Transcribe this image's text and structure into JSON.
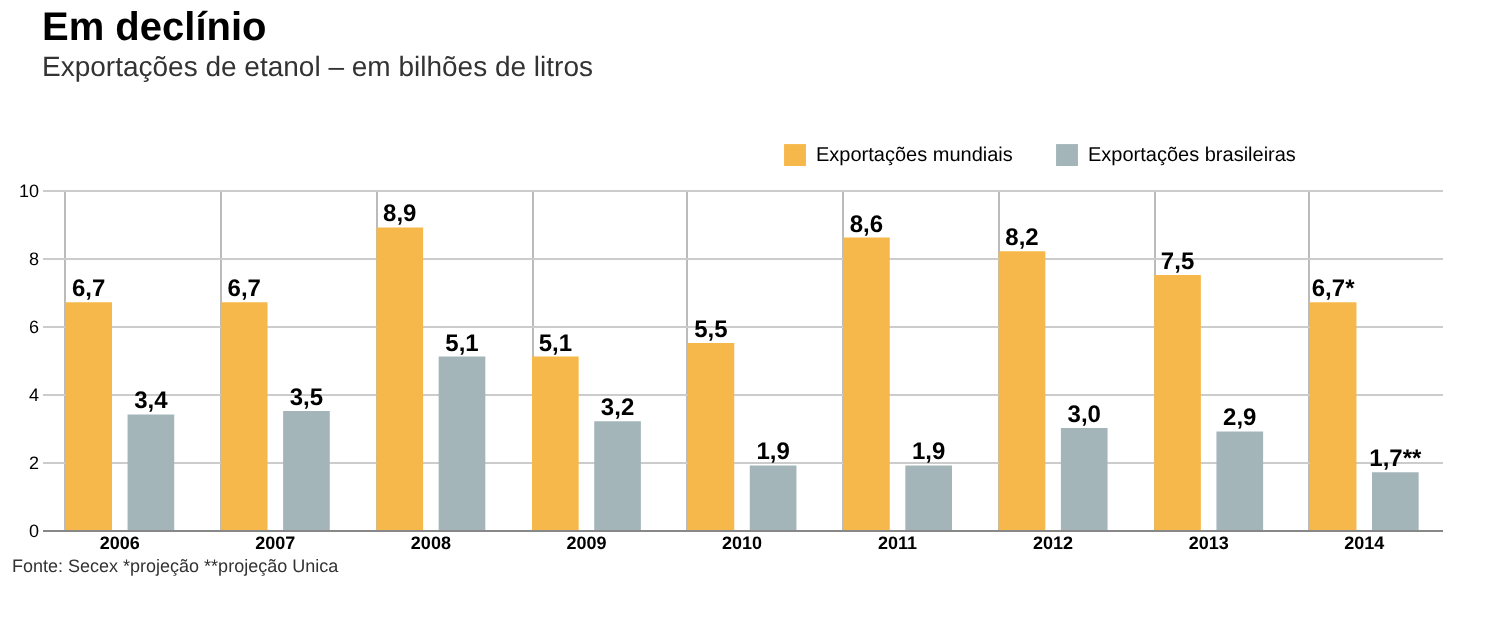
{
  "chart_data": {
    "type": "bar",
    "title": "Em declínio",
    "subtitle": "Exportações de etanol – em bilhões de litros",
    "categories": [
      "2006",
      "2007",
      "2008",
      "2009",
      "2010",
      "2011",
      "2012",
      "2013",
      "2014"
    ],
    "series": [
      {
        "name": "Exportações mundiais",
        "color": "#f7b84b",
        "values": [
          6.7,
          6.7,
          8.9,
          5.1,
          5.5,
          8.6,
          8.2,
          7.5,
          6.7
        ],
        "value_labels": [
          "6,7",
          "6,7",
          "8,9",
          "5,1",
          "5,5",
          "8,6",
          "8,2",
          "7,5",
          "6,7*"
        ]
      },
      {
        "name": "Exportações brasileiras",
        "color": "#a4b5b9",
        "values": [
          3.4,
          3.5,
          5.1,
          3.2,
          1.9,
          1.9,
          3.0,
          2.9,
          1.7
        ],
        "value_labels": [
          "3,4",
          "3,5",
          "5,1",
          "3,2",
          "1,9",
          "1,9",
          "3,0",
          "2,9",
          "1,7**"
        ]
      }
    ],
    "ylim": [
      0,
      10
    ],
    "yticks": [
      0,
      2,
      4,
      6,
      8,
      10
    ],
    "grid": true,
    "legend": "top right",
    "annotations": [
      "Fonte: Secex *projeção **projeção Unica"
    ]
  }
}
